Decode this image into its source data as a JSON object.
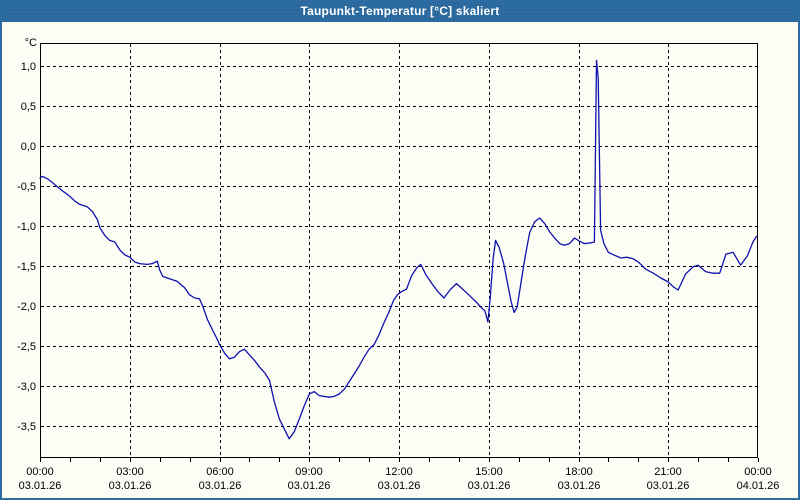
{
  "window": {
    "title": "Taupunkt-Temperatur [°C] skaliert"
  },
  "colors": {
    "titlebar_blue": "#2d6ca2",
    "window_border": "#2d6ca2",
    "content_background": "#fcfdf5",
    "line_blue": "#1111ae",
    "grid_black": "#000000",
    "title_text": "#ffffff"
  },
  "chart_data": {
    "type": "line",
    "title": "Taupunkt-Temperatur [°C] skaliert",
    "unit_label": "°C",
    "grid": true,
    "xlim_hours": [
      0,
      24
    ],
    "ylim": [
      -3.9,
      1.2875
    ],
    "y_ticks": [
      {
        "value": 1.0,
        "label": "1,0"
      },
      {
        "value": 0.5,
        "label": "0,5"
      },
      {
        "value": 0.0,
        "label": "0,0"
      },
      {
        "value": -0.5,
        "label": "-0,5"
      },
      {
        "value": -1.0,
        "label": "-1,0"
      },
      {
        "value": -1.5,
        "label": "-1,5"
      },
      {
        "value": -2.0,
        "label": "-2,0"
      },
      {
        "value": -2.5,
        "label": "-2,5"
      },
      {
        "value": -3.0,
        "label": "-3,0"
      },
      {
        "value": -3.5,
        "label": "-3,5"
      }
    ],
    "x_ticks": [
      {
        "hour": 0,
        "time": "00:00",
        "date": "03.01.26"
      },
      {
        "hour": 3,
        "time": "03:00",
        "date": "03.01.26"
      },
      {
        "hour": 6,
        "time": "06:00",
        "date": "03.01.26"
      },
      {
        "hour": 9,
        "time": "09:00",
        "date": "03.01.26"
      },
      {
        "hour": 12,
        "time": "12:00",
        "date": "03.01.26"
      },
      {
        "hour": 15,
        "time": "15:00",
        "date": "03.01.26"
      },
      {
        "hour": 18,
        "time": "18:00",
        "date": "03.01.26"
      },
      {
        "hour": 21,
        "time": "21:00",
        "date": "03.01.26"
      },
      {
        "hour": 24,
        "time": "00:00",
        "date": "04.01.26"
      }
    ],
    "minor_tick_every_hours": 1,
    "series": [
      {
        "name": "Taupunkt-Temperatur",
        "color": "#1111ae",
        "points": [
          [
            0.0,
            -0.4
          ],
          [
            0.08,
            -0.38
          ],
          [
            0.25,
            -0.41
          ],
          [
            0.42,
            -0.46
          ],
          [
            0.58,
            -0.51
          ],
          [
            0.75,
            -0.56
          ],
          [
            1.0,
            -0.63
          ],
          [
            1.17,
            -0.69
          ],
          [
            1.33,
            -0.73
          ],
          [
            1.58,
            -0.76
          ],
          [
            1.75,
            -0.82
          ],
          [
            1.92,
            -0.92
          ],
          [
            2.0,
            -1.02
          ],
          [
            2.17,
            -1.12
          ],
          [
            2.33,
            -1.18
          ],
          [
            2.5,
            -1.2
          ],
          [
            2.67,
            -1.3
          ],
          [
            2.83,
            -1.36
          ],
          [
            3.0,
            -1.39
          ],
          [
            3.17,
            -1.45
          ],
          [
            3.33,
            -1.47
          ],
          [
            3.58,
            -1.48
          ],
          [
            3.75,
            -1.47
          ],
          [
            3.92,
            -1.44
          ],
          [
            4.0,
            -1.55
          ],
          [
            4.1,
            -1.63
          ],
          [
            4.33,
            -1.66
          ],
          [
            4.58,
            -1.69
          ],
          [
            4.83,
            -1.77
          ],
          [
            5.0,
            -1.86
          ],
          [
            5.17,
            -1.9
          ],
          [
            5.33,
            -1.91
          ],
          [
            5.45,
            -2.01
          ],
          [
            5.6,
            -2.17
          ],
          [
            5.78,
            -2.31
          ],
          [
            5.93,
            -2.42
          ],
          [
            6.0,
            -2.48
          ],
          [
            6.17,
            -2.59
          ],
          [
            6.33,
            -2.66
          ],
          [
            6.5,
            -2.64
          ],
          [
            6.67,
            -2.57
          ],
          [
            6.83,
            -2.54
          ],
          [
            7.0,
            -2.61
          ],
          [
            7.17,
            -2.68
          ],
          [
            7.33,
            -2.76
          ],
          [
            7.5,
            -2.83
          ],
          [
            7.67,
            -2.93
          ],
          [
            7.83,
            -3.19
          ],
          [
            8.0,
            -3.41
          ],
          [
            8.17,
            -3.54
          ],
          [
            8.33,
            -3.66
          ],
          [
            8.5,
            -3.57
          ],
          [
            8.67,
            -3.41
          ],
          [
            8.83,
            -3.25
          ],
          [
            9.0,
            -3.1
          ],
          [
            9.17,
            -3.07
          ],
          [
            9.33,
            -3.12
          ],
          [
            9.67,
            -3.14
          ],
          [
            9.83,
            -3.13
          ],
          [
            10.0,
            -3.1
          ],
          [
            10.17,
            -3.04
          ],
          [
            10.33,
            -2.95
          ],
          [
            10.5,
            -2.85
          ],
          [
            10.67,
            -2.75
          ],
          [
            10.83,
            -2.64
          ],
          [
            11.0,
            -2.54
          ],
          [
            11.17,
            -2.48
          ],
          [
            11.33,
            -2.36
          ],
          [
            11.5,
            -2.21
          ],
          [
            11.67,
            -2.07
          ],
          [
            11.83,
            -1.92
          ],
          [
            11.95,
            -1.86
          ],
          [
            12.08,
            -1.82
          ],
          [
            12.25,
            -1.79
          ],
          [
            12.42,
            -1.62
          ],
          [
            12.6,
            -1.52
          ],
          [
            12.73,
            -1.48
          ],
          [
            12.9,
            -1.61
          ],
          [
            13.08,
            -1.71
          ],
          [
            13.3,
            -1.82
          ],
          [
            13.5,
            -1.9
          ],
          [
            13.7,
            -1.8
          ],
          [
            13.92,
            -1.72
          ],
          [
            14.1,
            -1.78
          ],
          [
            14.33,
            -1.86
          ],
          [
            14.58,
            -1.95
          ],
          [
            14.75,
            -2.02
          ],
          [
            14.87,
            -2.06
          ],
          [
            14.97,
            -2.2
          ],
          [
            15.05,
            -1.9
          ],
          [
            15.15,
            -1.4
          ],
          [
            15.23,
            -1.18
          ],
          [
            15.35,
            -1.27
          ],
          [
            15.5,
            -1.47
          ],
          [
            15.62,
            -1.7
          ],
          [
            15.75,
            -1.95
          ],
          [
            15.85,
            -2.08
          ],
          [
            15.95,
            -2.01
          ],
          [
            16.08,
            -1.7
          ],
          [
            16.22,
            -1.38
          ],
          [
            16.37,
            -1.08
          ],
          [
            16.53,
            -0.95
          ],
          [
            16.7,
            -0.9
          ],
          [
            16.87,
            -0.97
          ],
          [
            17.03,
            -1.07
          ],
          [
            17.2,
            -1.15
          ],
          [
            17.37,
            -1.22
          ],
          [
            17.53,
            -1.24
          ],
          [
            17.7,
            -1.22
          ],
          [
            17.87,
            -1.15
          ],
          [
            18.03,
            -1.19
          ],
          [
            18.2,
            -1.22
          ],
          [
            18.42,
            -1.21
          ],
          [
            18.53,
            -1.2
          ],
          [
            18.6,
            1.07
          ],
          [
            18.66,
            0.85
          ],
          [
            18.74,
            -1.05
          ],
          [
            18.85,
            -1.22
          ],
          [
            19.0,
            -1.33
          ],
          [
            19.17,
            -1.36
          ],
          [
            19.42,
            -1.4
          ],
          [
            19.62,
            -1.39
          ],
          [
            19.83,
            -1.41
          ],
          [
            20.0,
            -1.45
          ],
          [
            20.25,
            -1.54
          ],
          [
            20.5,
            -1.59
          ],
          [
            20.75,
            -1.65
          ],
          [
            21.0,
            -1.7
          ],
          [
            21.17,
            -1.76
          ],
          [
            21.33,
            -1.8
          ],
          [
            21.58,
            -1.6
          ],
          [
            21.83,
            -1.51
          ],
          [
            22.0,
            -1.49
          ],
          [
            22.25,
            -1.57
          ],
          [
            22.5,
            -1.59
          ],
          [
            22.72,
            -1.59
          ],
          [
            22.93,
            -1.35
          ],
          [
            23.17,
            -1.33
          ],
          [
            23.42,
            -1.49
          ],
          [
            23.65,
            -1.37
          ],
          [
            23.83,
            -1.2
          ],
          [
            23.95,
            -1.13
          ]
        ]
      }
    ]
  }
}
